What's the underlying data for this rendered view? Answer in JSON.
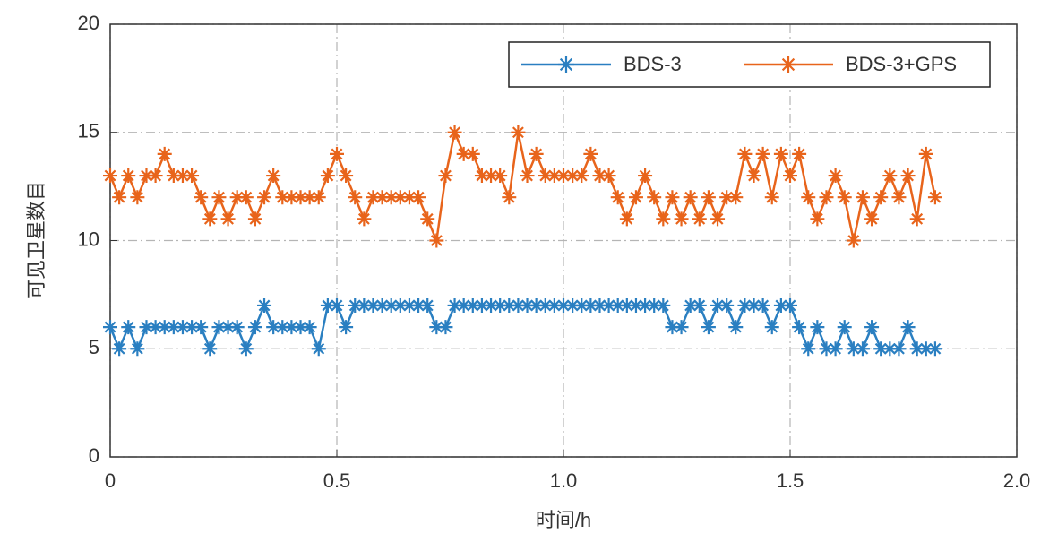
{
  "chart_data": {
    "type": "line",
    "xlabel": "时间/h",
    "ylabel": "可见卫星数目",
    "x": [
      0,
      0.02,
      0.04,
      0.06,
      0.08,
      0.1,
      0.12,
      0.14,
      0.16,
      0.18,
      0.2,
      0.22,
      0.24,
      0.26,
      0.28,
      0.3,
      0.32,
      0.34,
      0.36,
      0.38,
      0.4,
      0.42,
      0.44,
      0.46,
      0.48,
      0.5,
      0.52,
      0.54,
      0.56,
      0.58,
      0.6,
      0.62,
      0.64,
      0.66,
      0.68,
      0.7,
      0.72,
      0.74,
      0.76,
      0.78,
      0.8,
      0.82,
      0.84,
      0.86,
      0.88,
      0.9,
      0.92,
      0.94,
      0.96,
      0.98,
      1,
      1.02,
      1.04,
      1.06,
      1.08,
      1.1,
      1.12,
      1.14,
      1.16,
      1.18,
      1.2,
      1.22,
      1.24,
      1.26,
      1.28,
      1.3,
      1.32,
      1.34,
      1.36,
      1.38,
      1.4,
      1.42,
      1.44,
      1.46,
      1.48,
      1.5,
      1.52,
      1.54,
      1.56,
      1.58,
      1.6,
      1.62,
      1.64,
      1.66,
      1.68,
      1.7,
      1.72,
      1.74,
      1.76,
      1.78,
      1.8,
      1.82
    ],
    "series": [
      {
        "name": "BDS-3",
        "color": "#2a7fc1",
        "values": [
          6,
          5,
          6,
          5,
          6,
          6,
          6,
          6,
          6,
          6,
          6,
          5,
          6,
          6,
          6,
          5,
          6,
          7,
          6,
          6,
          6,
          6,
          6,
          5,
          7,
          7,
          6,
          7,
          7,
          7,
          7,
          7,
          7,
          7,
          7,
          7,
          6,
          6,
          7,
          7,
          7,
          7,
          7,
          7,
          7,
          7,
          7,
          7,
          7,
          7,
          7,
          7,
          7,
          7,
          7,
          7,
          7,
          7,
          7,
          7,
          7,
          7,
          6,
          6,
          7,
          7,
          6,
          7,
          7,
          6,
          7,
          7,
          7,
          6,
          7,
          7,
          6,
          5,
          6,
          5,
          5,
          6,
          5,
          5,
          6,
          5,
          5,
          5,
          6,
          5,
          5,
          5
        ]
      },
      {
        "name": "BDS-3+GPS",
        "color": "#e8641b",
        "values": [
          13,
          12,
          13,
          12,
          13,
          13,
          14,
          13,
          13,
          13,
          12,
          11,
          12,
          11,
          12,
          12,
          11,
          12,
          13,
          12,
          12,
          12,
          12,
          12,
          13,
          14,
          13,
          12,
          11,
          12,
          12,
          12,
          12,
          12,
          12,
          11,
          10,
          13,
          15,
          14,
          14,
          13,
          13,
          13,
          12,
          15,
          13,
          14,
          13,
          13,
          13,
          13,
          13,
          14,
          13,
          13,
          12,
          11,
          12,
          13,
          12,
          11,
          12,
          11,
          12,
          11,
          12,
          11,
          12,
          12,
          14,
          13,
          14,
          12,
          14,
          13,
          14,
          12,
          11,
          12,
          13,
          12,
          10,
          12,
          11,
          12,
          13,
          12,
          13,
          11,
          14,
          12
        ]
      }
    ],
    "xlim": [
      0,
      2
    ],
    "xticks": [
      0,
      0.5,
      {
        "value": 1,
        "label": "1.0"
      },
      1.5,
      {
        "value": 2,
        "label": "2.0"
      }
    ],
    "ylim": [
      0,
      20
    ],
    "yticks": [
      0,
      5,
      10,
      15,
      20
    ],
    "grid": true,
    "legend": "upper right"
  }
}
